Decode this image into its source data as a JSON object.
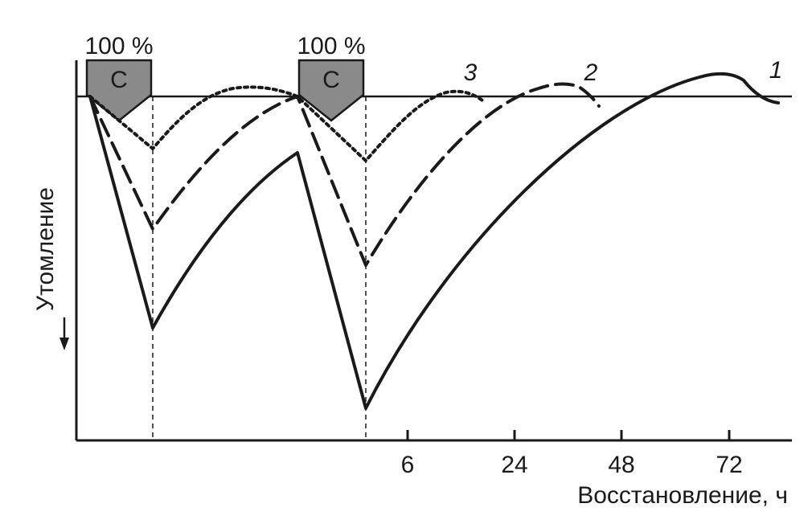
{
  "figure": {
    "markers": [
      {
        "load": "100 %",
        "label": "С"
      },
      {
        "load": "100 %",
        "label": "С"
      }
    ],
    "curves": [
      {
        "label": "1"
      },
      {
        "label": "2"
      },
      {
        "label": "3"
      }
    ],
    "x_ticks": [
      "6",
      "24",
      "48",
      "72"
    ],
    "x_axis_label": "Восстановление, ч",
    "y_axis_label": "Утомление"
  }
}
